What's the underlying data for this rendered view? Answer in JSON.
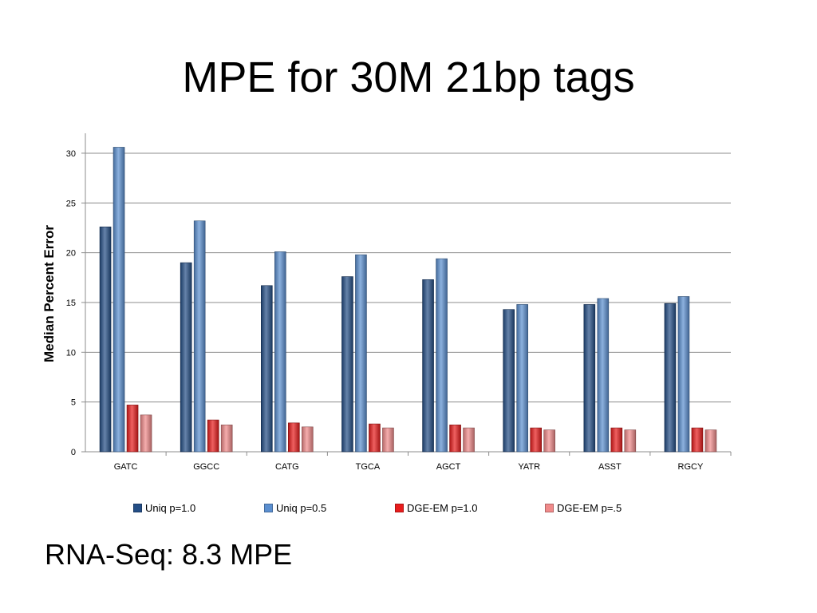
{
  "slide": {
    "title": "MPE for 30M 21bp tags",
    "footnote": "RNA-Seq: 8.3 MPE"
  },
  "chart_data": {
    "type": "bar",
    "title": "",
    "xlabel": "",
    "ylabel": "Median Percent Error",
    "ylim": [
      0,
      32
    ],
    "yticks": [
      0,
      5,
      10,
      15,
      20,
      25,
      30
    ],
    "grid": true,
    "legend_position": "bottom",
    "categories": [
      "GATC",
      "GGCC",
      "CATG",
      "TGCA",
      "AGCT",
      "YATR",
      "ASST",
      "RGCY"
    ],
    "series": [
      {
        "name": "Uniq p=1.0",
        "color": "#244e86",
        "values": [
          22.6,
          19.0,
          16.7,
          17.6,
          17.3,
          14.3,
          14.8,
          14.9
        ]
      },
      {
        "name": "Uniq p=0.5",
        "color": "#5b8fd0",
        "values": [
          30.6,
          23.2,
          20.1,
          19.8,
          19.4,
          14.8,
          15.4,
          15.6
        ]
      },
      {
        "name": "DGE-EM p=1.0",
        "color": "#e81c1c",
        "values": [
          4.7,
          3.2,
          2.9,
          2.8,
          2.7,
          2.4,
          2.4,
          2.4
        ]
      },
      {
        "name": "DGE-EM p=.5",
        "color": "#f08a8a",
        "values": [
          3.7,
          2.7,
          2.5,
          2.4,
          2.4,
          2.2,
          2.2,
          2.2
        ]
      }
    ]
  }
}
